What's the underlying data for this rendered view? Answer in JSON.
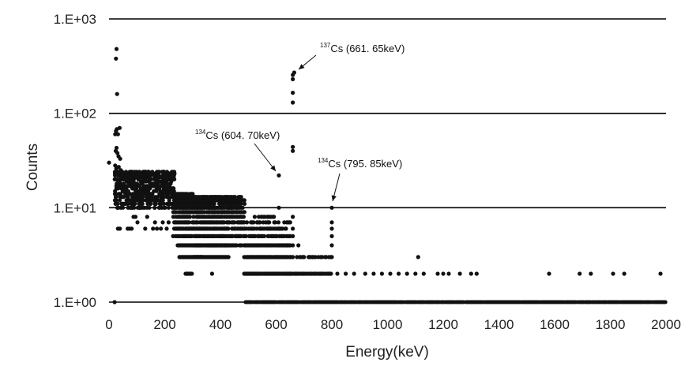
{
  "chart_data": {
    "type": "scatter",
    "title": "",
    "xlabel": "Energy(keV)",
    "ylabel": "Counts",
    "xlim": [
      0,
      2000
    ],
    "ylim": [
      1,
      1000
    ],
    "y_scale": "log",
    "x_ticks": [
      "0",
      "200",
      "400",
      "600",
      "800",
      "1000",
      "1200",
      "1400",
      "1600",
      "1800",
      "2000"
    ],
    "y_ticks": [
      "1.E+00",
      "1.E+01",
      "1.E+02",
      "1.E+03"
    ],
    "grid": "horizontal major lines",
    "legend": "none",
    "marker_color": "#111111",
    "annotations": [
      {
        "isotope_mass": "137",
        "text": "Cs (661. 65keV)",
        "x": 661.65,
        "y": 290
      },
      {
        "isotope_mass": "134",
        "text": "Cs (604. 70keV)",
        "x": 604.7,
        "y": 22
      },
      {
        "isotope_mass": "134",
        "text": "Cs (795. 85keV)",
        "x": 795.85,
        "y": 10
      }
    ],
    "series": [
      {
        "points": [
          [
            0,
            30
          ],
          [
            20,
            1
          ],
          [
            25,
            380
          ],
          [
            27,
            480
          ],
          [
            29,
            160
          ],
          [
            22,
            60
          ],
          [
            25,
            65
          ],
          [
            28,
            68
          ],
          [
            32,
            60
          ],
          [
            38,
            70
          ],
          [
            24,
            40
          ],
          [
            27,
            43
          ],
          [
            30,
            38
          ],
          [
            34,
            35
          ],
          [
            40,
            33
          ],
          [
            22,
            28
          ],
          [
            26,
            26
          ],
          [
            30,
            24
          ],
          [
            35,
            27
          ],
          [
            42,
            25
          ],
          [
            610,
            10
          ],
          [
            610,
            22
          ],
          [
            660,
            130
          ],
          [
            660,
            165
          ],
          [
            660,
            230
          ],
          [
            660,
            255
          ],
          [
            665,
            270
          ],
          [
            660,
            40
          ],
          [
            660,
            44
          ],
          [
            660,
            8
          ],
          [
            800,
            10
          ],
          [
            800,
            7
          ],
          [
            800,
            6
          ],
          [
            800,
            5
          ],
          [
            800,
            4
          ],
          [
            800,
            3
          ],
          [
            660,
            6
          ],
          [
            660,
            5
          ],
          [
            660,
            4
          ],
          [
            660,
            3
          ],
          [
            620,
            5
          ],
          [
            640,
            4
          ],
          [
            680,
            4
          ],
          [
            700,
            3
          ],
          [
            720,
            3
          ],
          [
            760,
            3
          ],
          [
            780,
            3
          ],
          [
            1110,
            3
          ],
          [
            820,
            2
          ],
          [
            850,
            2
          ],
          [
            880,
            2
          ],
          [
            920,
            2
          ],
          [
            950,
            2
          ],
          [
            980,
            2
          ],
          [
            1010,
            2
          ],
          [
            1040,
            2
          ],
          [
            1070,
            2
          ],
          [
            1100,
            2
          ],
          [
            1130,
            2
          ],
          [
            1180,
            2
          ],
          [
            1200,
            2
          ],
          [
            1220,
            2
          ],
          [
            1260,
            2
          ],
          [
            1300,
            2
          ],
          [
            1320,
            2
          ],
          [
            1580,
            2
          ],
          [
            1690,
            2
          ],
          [
            1730,
            2
          ],
          [
            1810,
            2
          ],
          [
            1850,
            2
          ],
          [
            1980,
            2
          ]
        ]
      }
    ]
  }
}
